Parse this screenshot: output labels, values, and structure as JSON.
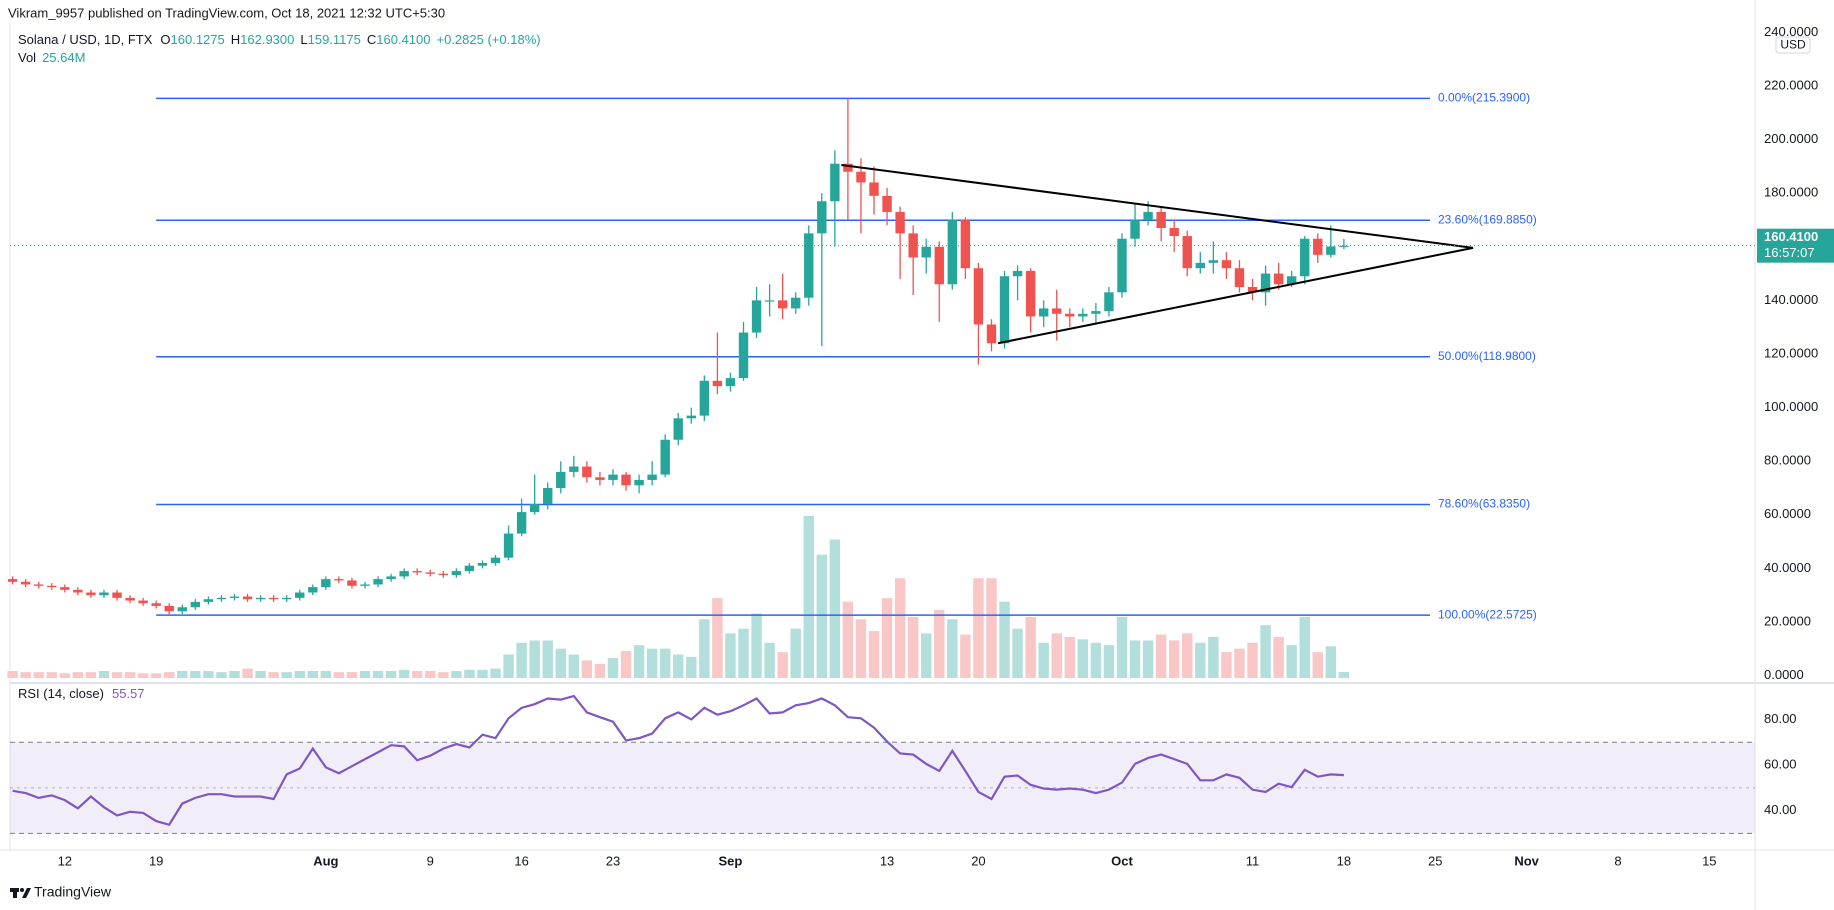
{
  "header": {
    "published": "Vikram_9957 published on TradingView.com, Oct 18, 2021 12:32 UTC+5:30"
  },
  "legend": {
    "symbol": "Solana / USD, 1D, FTX",
    "ohlc": [
      {
        "key": "O",
        "value": "160.1275"
      },
      {
        "key": "H",
        "value": "162.9300"
      },
      {
        "key": "L",
        "value": "159.1175"
      },
      {
        "key": "C",
        "value": "160.4100"
      }
    ],
    "change": "+0.2825 (+0.18%)",
    "vol_key": "Vol",
    "vol_value": "25.64M"
  },
  "chart_data": [
    {
      "type": "candlestick",
      "currency": "USD",
      "xlim": [
        -0.2,
        133.5
      ],
      "xticks": [
        {
          "value": 4,
          "label": "12"
        },
        {
          "value": 11,
          "label": "19"
        },
        {
          "value": 24,
          "label": "Aug"
        },
        {
          "value": 32,
          "label": "9"
        },
        {
          "value": 39,
          "label": "16"
        },
        {
          "value": 46,
          "label": "23"
        },
        {
          "value": 55,
          "label": "Sep"
        },
        {
          "value": 67,
          "label": "13"
        },
        {
          "value": 74,
          "label": "20"
        },
        {
          "value": 85,
          "label": "Oct"
        },
        {
          "value": 95,
          "label": "11"
        },
        {
          "value": 102,
          "label": "18"
        },
        {
          "value": 109,
          "label": "25"
        },
        {
          "value": 116,
          "label": "Nov"
        },
        {
          "value": 123,
          "label": "8"
        },
        {
          "value": 130,
          "label": "15"
        }
      ],
      "ylim": [
        -0.9,
        243.5
      ],
      "yticks": [
        {
          "value": 0,
          "label": "0.0000"
        },
        {
          "value": 20,
          "label": "20.0000"
        },
        {
          "value": 40,
          "label": "40.0000"
        },
        {
          "value": 60,
          "label": "60.0000"
        },
        {
          "value": 80,
          "label": "80.0000"
        },
        {
          "value": 100,
          "label": "100.0000"
        },
        {
          "value": 120,
          "label": "120.0000"
        },
        {
          "value": 140,
          "label": "140.0000"
        },
        {
          "value": 160,
          "label": "160.0000"
        },
        {
          "value": 180,
          "label": "180.0000"
        },
        {
          "value": 200,
          "label": "200.0000"
        },
        {
          "value": 220,
          "label": "220.0000"
        },
        {
          "value": 240,
          "label": "240.0000"
        }
      ],
      "grid": false,
      "up_color": "#26a69a",
      "down_color": "#ef5350",
      "volume_up_color": "#b2dfdb",
      "volume_down_color": "#f8c7c6",
      "open": [
        36,
        35,
        34,
        33.5,
        33,
        32,
        31,
        30,
        31,
        29,
        28,
        27,
        26,
        24,
        25.5,
        27.5,
        28.5,
        29,
        29.5,
        28.5,
        29,
        28.5,
        29,
        31,
        33,
        36,
        35.5,
        33.5,
        34,
        36,
        37,
        39,
        38.5,
        38,
        37.5,
        39,
        41,
        42,
        44,
        53,
        61,
        64,
        70,
        76,
        78,
        74,
        73,
        75,
        71,
        73,
        75,
        88,
        96,
        97,
        110,
        108,
        111,
        128,
        140,
        140,
        137,
        141,
        165,
        177,
        191,
        188,
        184,
        179,
        173,
        165,
        156,
        160,
        146,
        170,
        152,
        131,
        124,
        149,
        151,
        134,
        137,
        135,
        134,
        135,
        136,
        143,
        163,
        170,
        173,
        167,
        164,
        152,
        154,
        155,
        152,
        145,
        143,
        150,
        146,
        149,
        163,
        157,
        160.1275
      ],
      "high": [
        37,
        36,
        35,
        34.5,
        34,
        33,
        32,
        32,
        32,
        30,
        29,
        28,
        27,
        26.5,
        28.5,
        29.5,
        30,
        30.5,
        30.5,
        30,
        30,
        30,
        32,
        34,
        37,
        37,
        36.5,
        35,
        37,
        38,
        40,
        40,
        39.5,
        39,
        40,
        42,
        43,
        45,
        56,
        66,
        75,
        72,
        80,
        82,
        80,
        76,
        77,
        76,
        75,
        80,
        90,
        98,
        100,
        112,
        128,
        113,
        132,
        145,
        146,
        150,
        143,
        168,
        180,
        196,
        215.39,
        193,
        190,
        182,
        175,
        168,
        163,
        162,
        173,
        171,
        154,
        133,
        151,
        153,
        152,
        140,
        144,
        137,
        137,
        139,
        145,
        165,
        176,
        177,
        175,
        170,
        166,
        158,
        162,
        158,
        155,
        148,
        153,
        154,
        151,
        164,
        165,
        168,
        162.93
      ],
      "low": [
        34,
        33,
        32.5,
        32,
        31,
        30,
        29,
        29,
        28,
        27,
        26,
        25,
        22.6,
        23,
        24.5,
        26.5,
        27.5,
        28,
        27.5,
        27.5,
        27.5,
        27.5,
        28,
        30,
        32,
        34.5,
        32.5,
        32.5,
        33,
        35,
        36,
        37.5,
        37,
        36.5,
        36.5,
        38,
        40,
        41,
        43,
        52,
        60,
        62,
        68,
        74,
        72,
        71,
        71,
        69,
        68,
        71,
        74,
        86,
        94,
        95,
        105,
        106,
        110,
        126,
        134,
        133,
        135,
        138,
        123,
        160,
        170,
        165,
        172,
        168,
        148,
        142,
        150,
        132,
        144,
        148,
        116,
        121,
        122,
        140,
        128,
        130,
        125,
        130,
        132,
        131,
        134,
        141,
        160,
        168,
        162,
        158,
        149,
        150,
        150,
        148,
        143,
        140,
        138,
        144,
        145,
        146,
        154,
        156,
        159.1175
      ],
      "close": [
        35,
        34,
        33.5,
        33,
        32,
        31,
        30,
        31,
        29,
        28,
        27,
        26,
        24,
        25.5,
        27.5,
        28.5,
        29,
        29.5,
        28.5,
        29,
        28.5,
        29,
        31,
        33,
        36,
        35.5,
        33.5,
        34,
        36,
        37,
        39,
        38.5,
        38,
        37.5,
        39,
        41,
        42,
        44,
        53,
        61,
        64,
        70,
        76,
        78,
        74,
        73,
        75,
        71,
        73,
        75,
        88,
        96,
        97,
        110,
        108,
        111,
        128,
        140,
        140,
        137,
        141,
        165,
        177,
        191,
        188,
        184,
        179,
        173,
        165,
        156,
        160,
        146,
        170,
        152,
        131,
        124,
        149,
        151,
        134,
        137,
        135,
        134,
        135,
        136,
        143,
        163,
        170,
        173,
        167,
        164,
        152,
        154,
        155,
        152,
        145,
        143,
        150,
        146,
        149,
        163,
        157,
        160.1275,
        160.41
      ],
      "volume": [
        30,
        25,
        25,
        25,
        20,
        25,
        25,
        30,
        25,
        25,
        20,
        20,
        25,
        30,
        30,
        30,
        25,
        30,
        40,
        30,
        25,
        25,
        30,
        30,
        30,
        25,
        25,
        30,
        30,
        30,
        35,
        30,
        30,
        25,
        30,
        35,
        35,
        40,
        100,
        150,
        160,
        160,
        125,
        100,
        75,
        60,
        85,
        115,
        140,
        125,
        125,
        100,
        90,
        250,
        340,
        190,
        210,
        275,
        150,
        110,
        210,
        690,
        525,
        590,
        325,
        250,
        200,
        340,
        425,
        260,
        190,
        290,
        250,
        185,
        425,
        425,
        325,
        210,
        260,
        150,
        190,
        175,
        165,
        150,
        140,
        260,
        160,
        160,
        185,
        160,
        190,
        150,
        175,
        110,
        125,
        150,
        225,
        175,
        140,
        260,
        110,
        135,
        25.64
      ],
      "fib_color": "#2962ff",
      "fib": [
        {
          "label": "0.00%(215.3900)",
          "value": 215.39
        },
        {
          "label": "23.60%(169.8850)",
          "value": 169.885
        },
        {
          "label": "50.00%(118.9800)",
          "value": 118.98
        },
        {
          "label": "78.60%(63.8350)",
          "value": 63.835
        },
        {
          "label": "100.00%(22.5725)",
          "value": 22.5725
        }
      ],
      "trendlines": [
        {
          "points": [
            [
              63.5,
              190.5
            ],
            [
              111.9,
              159.6
            ]
          ]
        },
        {
          "points": [
            [
              75.5,
              124
            ],
            [
              111.9,
              159.6
            ]
          ]
        }
      ],
      "last_price": {
        "value": 160.41,
        "label": "160.4100"
      },
      "countdown": "16:57:07"
    },
    {
      "type": "line",
      "title": "RSI (14, close)",
      "color": "#7e57c2",
      "ylim": [
        23.6,
        93.8
      ],
      "yticks": [
        {
          "value": 40,
          "label": "40.00"
        },
        {
          "value": 60,
          "label": "60.00"
        },
        {
          "value": 80,
          "label": "80.00"
        }
      ],
      "band": [
        30,
        70
      ],
      "mid": 50,
      "values": [
        48.7,
        47.7,
        45.6,
        46.7,
        44.6,
        41.0,
        46.2,
        41.5,
        37.9,
        39.5,
        39.0,
        35.4,
        33.8,
        43.1,
        45.6,
        47.2,
        47.2,
        46.2,
        46.2,
        46.2,
        45.1,
        55.9,
        58.5,
        67.2,
        59.0,
        56.4,
        59.5,
        62.6,
        65.6,
        68.7,
        68.2,
        62.1,
        64.1,
        67.2,
        69.2,
        67.7,
        73.3,
        71.8,
        80.5,
        85.1,
        86.7,
        89.2,
        88.7,
        90.3,
        83.1,
        81.0,
        79.0,
        70.8,
        71.8,
        73.8,
        80.5,
        83.1,
        80.0,
        85.1,
        82.1,
        83.6,
        86.2,
        89.2,
        82.6,
        83.1,
        86.2,
        87.2,
        89.2,
        86.2,
        81.0,
        80.5,
        76.4,
        70.3,
        65.1,
        64.6,
        60.5,
        57.4,
        66.2,
        57.4,
        48.2,
        45.1,
        54.9,
        55.4,
        51.3,
        49.7,
        49.2,
        49.7,
        49.2,
        47.7,
        49.2,
        52.3,
        60.5,
        63.1,
        64.6,
        62.6,
        60.5,
        53.3,
        53.3,
        55.9,
        54.4,
        49.2,
        48.2,
        51.8,
        50.3,
        57.9,
        54.9,
        55.9,
        55.57
      ]
    }
  ],
  "footer": {
    "brand": "TradingView"
  }
}
